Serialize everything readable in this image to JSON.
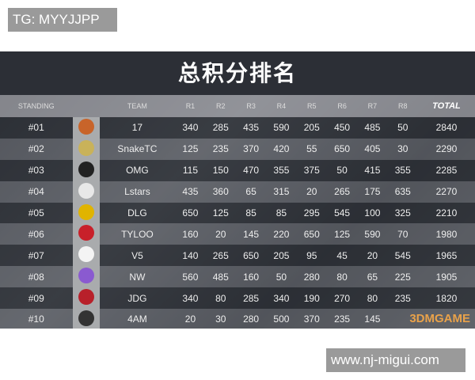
{
  "watermark_top": "TG: MYYJJPP",
  "watermark_bottom": "www.nj-migui.com",
  "board_watermark": "3DMGAME",
  "title": "总积分排名",
  "headers": [
    "STANDING",
    "TEAM",
    "R1",
    "R2",
    "R3",
    "R4",
    "R5",
    "R6",
    "R7",
    "R8",
    "TOTAL"
  ],
  "rows": [
    {
      "rank": "#01",
      "team": "17",
      "r": [
        "340",
        "285",
        "435",
        "590",
        "205",
        "450",
        "485",
        "50"
      ],
      "total": "2840",
      "logo_color": "#c8642a"
    },
    {
      "rank": "#02",
      "team": "SnakeTC",
      "r": [
        "125",
        "235",
        "370",
        "420",
        "55",
        "650",
        "405",
        "30"
      ],
      "total": "2290",
      "logo_color": "#c9b25a"
    },
    {
      "rank": "#03",
      "team": "OMG",
      "r": [
        "115",
        "150",
        "470",
        "355",
        "375",
        "50",
        "415",
        "355"
      ],
      "total": "2285",
      "logo_color": "#222222"
    },
    {
      "rank": "#04",
      "team": "Lstars",
      "r": [
        "435",
        "360",
        "65",
        "315",
        "20",
        "265",
        "175",
        "635"
      ],
      "total": "2270",
      "logo_color": "#e8e8e8"
    },
    {
      "rank": "#05",
      "team": "DLG",
      "r": [
        "650",
        "125",
        "85",
        "85",
        "295",
        "545",
        "100",
        "325"
      ],
      "total": "2210",
      "logo_color": "#e0b400"
    },
    {
      "rank": "#06",
      "team": "TYLOO",
      "r": [
        "160",
        "20",
        "145",
        "220",
        "650",
        "125",
        "590",
        "70"
      ],
      "total": "1980",
      "logo_color": "#c8202a"
    },
    {
      "rank": "#07",
      "team": "V5",
      "r": [
        "140",
        "265",
        "650",
        "205",
        "95",
        "45",
        "20",
        "545"
      ],
      "total": "1965",
      "logo_color": "#f4f4f4"
    },
    {
      "rank": "#08",
      "team": "NW",
      "r": [
        "560",
        "485",
        "160",
        "50",
        "280",
        "80",
        "65",
        "225"
      ],
      "total": "1905",
      "logo_color": "#8a5ad0"
    },
    {
      "rank": "#09",
      "team": "JDG",
      "r": [
        "340",
        "80",
        "285",
        "340",
        "190",
        "270",
        "80",
        "235"
      ],
      "total": "1820",
      "logo_color": "#b8202a"
    },
    {
      "rank": "#10",
      "team": "4AM",
      "r": [
        "20",
        "30",
        "280",
        "500",
        "370",
        "235",
        "145",
        ""
      ],
      "total": "",
      "logo_color": "#333333"
    }
  ]
}
